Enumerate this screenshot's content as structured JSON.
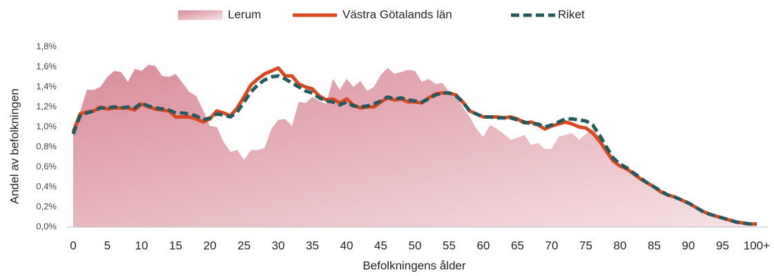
{
  "chart_data": {
    "type": "line",
    "x_label": "Befolkningens ålder",
    "y_label": "Andel av befolkningen",
    "categories": [
      "0",
      null,
      null,
      null,
      null,
      "5",
      null,
      null,
      null,
      null,
      "10",
      null,
      null,
      null,
      null,
      "15",
      null,
      null,
      null,
      null,
      "20",
      null,
      null,
      null,
      null,
      "25",
      null,
      null,
      null,
      null,
      "30",
      null,
      null,
      null,
      null,
      "35",
      null,
      null,
      null,
      null,
      "40",
      null,
      null,
      null,
      null,
      "45",
      null,
      null,
      null,
      null,
      "50",
      null,
      null,
      null,
      null,
      "55",
      null,
      null,
      null,
      null,
      "60",
      null,
      null,
      null,
      null,
      "65",
      null,
      null,
      null,
      null,
      "70",
      null,
      null,
      null,
      null,
      "75",
      null,
      null,
      null,
      null,
      "80",
      null,
      null,
      null,
      null,
      "85",
      null,
      null,
      null,
      null,
      "90",
      null,
      null,
      null,
      null,
      "95",
      null,
      null,
      null,
      null,
      "100+"
    ],
    "ylim": [
      0,
      1.8
    ],
    "yticks": [
      {
        "value": 0,
        "label": "0,0%"
      },
      {
        "value": 0.2,
        "label": "0,2%"
      },
      {
        "value": 0.4,
        "label": "0,4%"
      },
      {
        "value": 0.6,
        "label": "0,6%"
      },
      {
        "value": 0.8,
        "label": "0,8%"
      },
      {
        "value": 1.0,
        "label": "1,0%"
      },
      {
        "value": 1.2,
        "label": "1,2%"
      },
      {
        "value": 1.4,
        "label": "1,4%"
      },
      {
        "value": 1.6,
        "label": "1,6%"
      },
      {
        "value": 1.8,
        "label": "1,8%"
      }
    ],
    "series": [
      {
        "name": "Lerum",
        "type": "area",
        "color": "#d98c99",
        "values": [
          0.95,
          1.15,
          1.37,
          1.37,
          1.4,
          1.5,
          1.56,
          1.55,
          1.45,
          1.58,
          1.56,
          1.62,
          1.61,
          1.51,
          1.5,
          1.53,
          1.44,
          1.35,
          1.31,
          1.17,
          1.01,
          1.0,
          0.85,
          0.75,
          0.77,
          0.67,
          0.77,
          0.77,
          0.79,
          0.98,
          1.07,
          1.08,
          1.01,
          1.25,
          1.24,
          1.3,
          1.26,
          1.23,
          1.48,
          1.37,
          1.48,
          1.4,
          1.46,
          1.36,
          1.4,
          1.52,
          1.59,
          1.53,
          1.55,
          1.57,
          1.56,
          1.45,
          1.48,
          1.43,
          1.44,
          1.35,
          1.31,
          1.2,
          1.1,
          0.98,
          0.9,
          1.02,
          0.98,
          0.93,
          0.87,
          0.89,
          0.92,
          0.82,
          0.84,
          0.78,
          0.78,
          0.9,
          0.92,
          0.94,
          0.87,
          0.93,
          0.98,
          0.9,
          0.8,
          0.7,
          0.62,
          0.57,
          0.52,
          0.47,
          0.43,
          0.39,
          0.35,
          0.32,
          0.3,
          0.27,
          0.24,
          0.2,
          0.17,
          0.14,
          0.12,
          0.1,
          0.08,
          0.06,
          0.05,
          0.04,
          0.03
        ]
      },
      {
        "name": "Västra Götalands län",
        "type": "line",
        "dashed": false,
        "color": "#d9481f",
        "values": [
          0.95,
          1.13,
          1.15,
          1.16,
          1.2,
          1.18,
          1.19,
          1.19,
          1.19,
          1.17,
          1.23,
          1.2,
          1.18,
          1.17,
          1.16,
          1.1,
          1.1,
          1.1,
          1.08,
          1.05,
          1.08,
          1.16,
          1.14,
          1.11,
          1.19,
          1.3,
          1.42,
          1.48,
          1.53,
          1.56,
          1.59,
          1.51,
          1.51,
          1.43,
          1.4,
          1.38,
          1.31,
          1.27,
          1.28,
          1.24,
          1.28,
          1.22,
          1.19,
          1.2,
          1.2,
          1.25,
          1.29,
          1.27,
          1.28,
          1.25,
          1.25,
          1.24,
          1.29,
          1.33,
          1.34,
          1.34,
          1.32,
          1.25,
          1.16,
          1.13,
          1.1,
          1.1,
          1.1,
          1.09,
          1.1,
          1.08,
          1.04,
          1.05,
          1.02,
          0.98,
          1.01,
          1.03,
          1.05,
          1.03,
          1.0,
          0.99,
          0.94,
          0.86,
          0.76,
          0.66,
          0.61,
          0.58,
          0.53,
          0.48,
          0.44,
          0.4,
          0.35,
          0.32,
          0.3,
          0.27,
          0.24,
          0.2,
          0.16,
          0.13,
          0.11,
          0.09,
          0.07,
          0.05,
          0.04,
          0.03,
          0.03
        ]
      },
      {
        "name": "Riket",
        "type": "line",
        "dashed": true,
        "color": "#235a5e",
        "values": [
          0.93,
          1.11,
          1.14,
          1.16,
          1.19,
          1.19,
          1.2,
          1.19,
          1.2,
          1.19,
          1.24,
          1.21,
          1.19,
          1.18,
          1.17,
          1.14,
          1.14,
          1.13,
          1.11,
          1.07,
          1.09,
          1.13,
          1.12,
          1.1,
          1.15,
          1.25,
          1.35,
          1.42,
          1.47,
          1.5,
          1.51,
          1.48,
          1.44,
          1.4,
          1.36,
          1.34,
          1.29,
          1.26,
          1.25,
          1.22,
          1.25,
          1.21,
          1.2,
          1.21,
          1.23,
          1.26,
          1.3,
          1.28,
          1.29,
          1.27,
          1.26,
          1.25,
          1.28,
          1.32,
          1.34,
          1.34,
          1.31,
          1.25,
          1.16,
          1.13,
          1.1,
          1.1,
          1.09,
          1.09,
          1.09,
          1.07,
          1.05,
          1.03,
          1.03,
          1.0,
          1.02,
          1.05,
          1.08,
          1.08,
          1.07,
          1.06,
          1.02,
          0.92,
          0.8,
          0.69,
          0.63,
          0.59,
          0.54,
          0.49,
          0.44,
          0.4,
          0.36,
          0.32,
          0.3,
          0.27,
          0.24,
          0.2,
          0.16,
          0.13,
          0.11,
          0.09,
          0.07,
          0.05,
          0.04,
          0.03,
          0.03
        ]
      }
    ]
  }
}
